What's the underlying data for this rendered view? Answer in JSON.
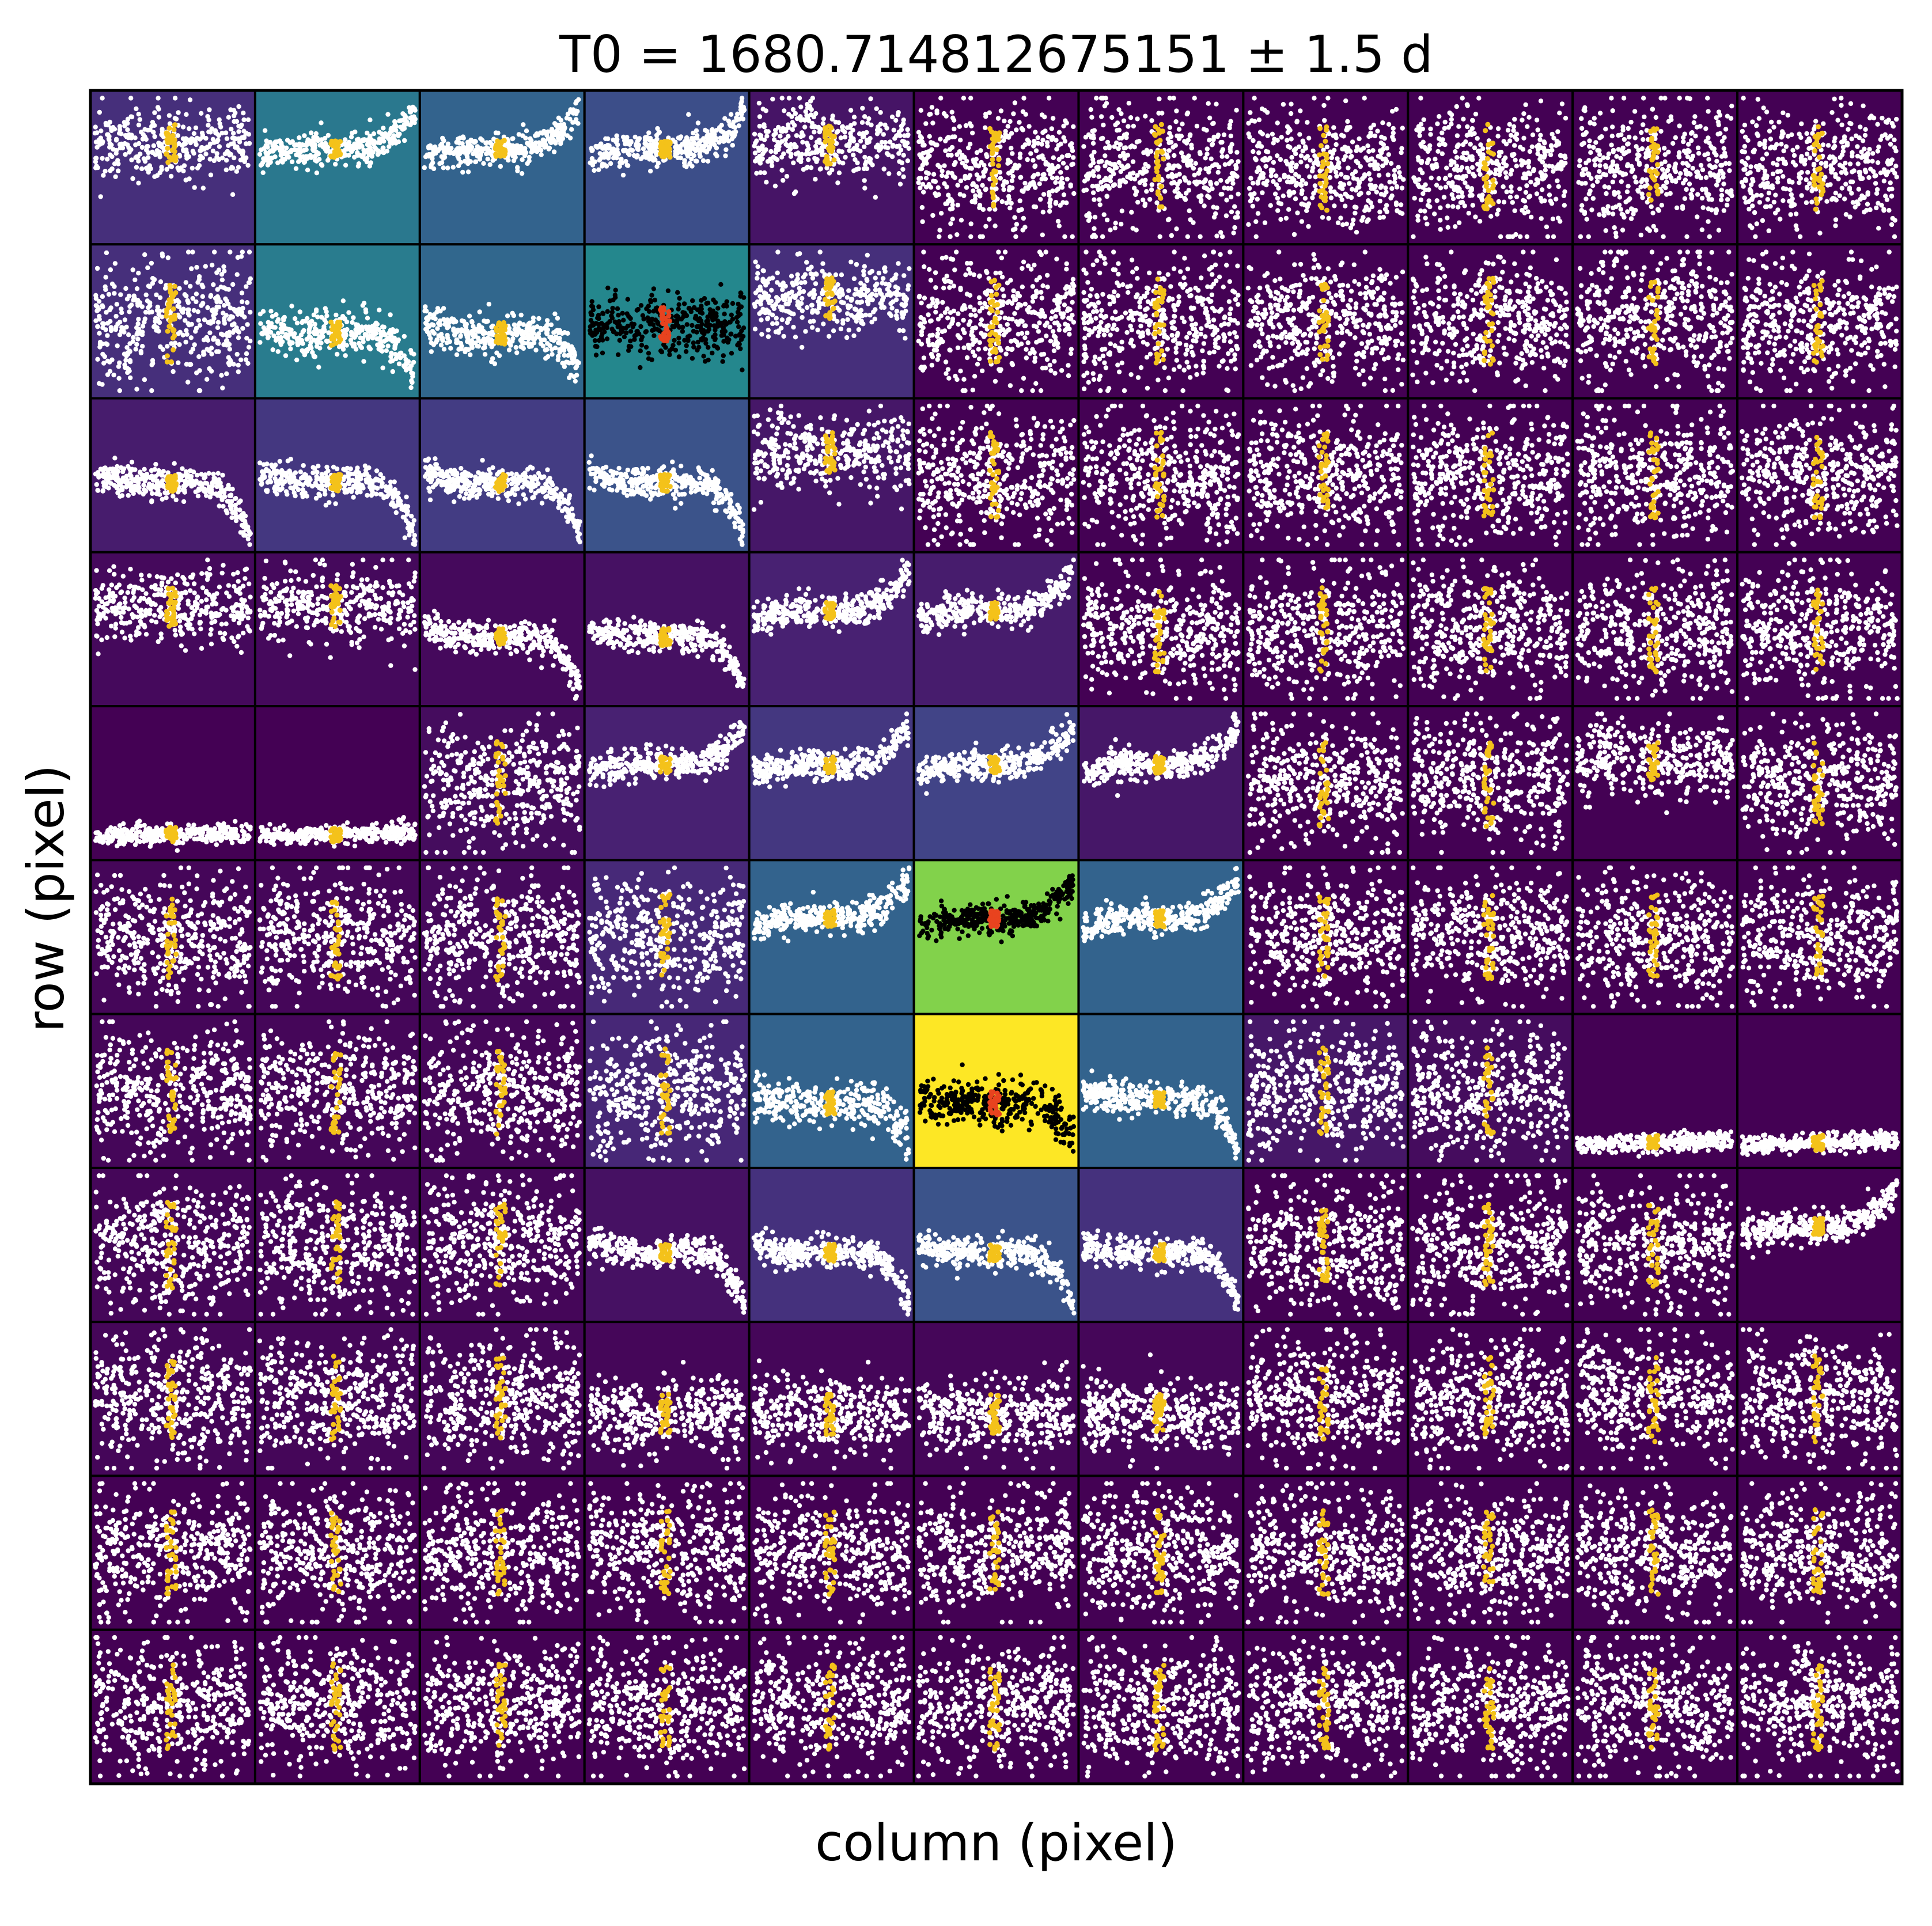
{
  "chart_data": {
    "type": "scatter",
    "layout": "pixel-grid",
    "title": "T0 = 1680.714812675151 ± 1.5 d",
    "xlabel": "column (pixel)",
    "ylabel": "row (pixel)",
    "grid": false,
    "ticks": false,
    "n_rows": 11,
    "n_cols": 11,
    "colormap": "viridis",
    "series": [
      {
        "name": "",
        "role": "flux",
        "point_color": "#ffffff"
      },
      {
        "name": "",
        "role": "in-transit",
        "point_color": "#f4c21a"
      },
      {
        "name": "",
        "role": "aperture-flux",
        "point_color": "#000000"
      },
      {
        "name": "",
        "role": "aperture-in-transit",
        "point_color": "#e8431f"
      }
    ],
    "cells": [
      [
        {
          "level": 0.17,
          "shape": "noisy-mid",
          "aperture": false
        },
        {
          "level": 0.5,
          "shape": "curve-up",
          "aperture": false
        },
        {
          "level": 0.4,
          "shape": "curve-up",
          "aperture": false
        },
        {
          "level": 0.3,
          "shape": "curve-up",
          "aperture": false
        },
        {
          "level": 0.07,
          "shape": "noisy-mid",
          "aperture": false
        },
        {
          "level": 0.0,
          "shape": "noise",
          "aperture": false
        },
        {
          "level": 0.0,
          "shape": "noise",
          "aperture": false
        },
        {
          "level": 0.0,
          "shape": "noise",
          "aperture": false
        },
        {
          "level": 0.0,
          "shape": "noise",
          "aperture": false
        },
        {
          "level": 0.0,
          "shape": "noise",
          "aperture": false
        },
        {
          "level": 0.0,
          "shape": "noise",
          "aperture": false
        }
      ],
      [
        {
          "level": 0.17,
          "shape": "noise",
          "aperture": false
        },
        {
          "level": 0.52,
          "shape": "low-curve",
          "aperture": false
        },
        {
          "level": 0.42,
          "shape": "low-curve",
          "aperture": false
        },
        {
          "level": 0.58,
          "shape": "flat-mid",
          "aperture": true
        },
        {
          "level": 0.17,
          "shape": "noisy-mid",
          "aperture": false
        },
        {
          "level": 0.0,
          "shape": "noise",
          "aperture": false
        },
        {
          "level": 0.0,
          "shape": "noise",
          "aperture": false
        },
        {
          "level": 0.0,
          "shape": "noise",
          "aperture": false
        },
        {
          "level": 0.0,
          "shape": "noise",
          "aperture": false
        },
        {
          "level": 0.0,
          "shape": "noise",
          "aperture": false
        },
        {
          "level": 0.0,
          "shape": "noise",
          "aperture": false
        }
      ],
      [
        {
          "level": 0.1,
          "shape": "curve-down",
          "aperture": false
        },
        {
          "level": 0.2,
          "shape": "curve-down",
          "aperture": false
        },
        {
          "level": 0.22,
          "shape": "curve-down",
          "aperture": false
        },
        {
          "level": 0.32,
          "shape": "curve-down",
          "aperture": false
        },
        {
          "level": 0.08,
          "shape": "noisy-mid",
          "aperture": false
        },
        {
          "level": 0.0,
          "shape": "noise",
          "aperture": false
        },
        {
          "level": 0.0,
          "shape": "noise",
          "aperture": false
        },
        {
          "level": 0.0,
          "shape": "noise",
          "aperture": false
        },
        {
          "level": 0.0,
          "shape": "noise",
          "aperture": false
        },
        {
          "level": 0.0,
          "shape": "noise",
          "aperture": false
        },
        {
          "level": 0.0,
          "shape": "noise",
          "aperture": false
        }
      ],
      [
        {
          "level": 0.03,
          "shape": "noisy-mid",
          "aperture": false
        },
        {
          "level": 0.03,
          "shape": "noisy-mid",
          "aperture": false
        },
        {
          "level": 0.03,
          "shape": "curve-down",
          "aperture": false
        },
        {
          "level": 0.06,
          "shape": "curve-down",
          "aperture": false
        },
        {
          "level": 0.12,
          "shape": "curve-up",
          "aperture": false
        },
        {
          "level": 0.1,
          "shape": "curve-up",
          "aperture": false
        },
        {
          "level": 0.0,
          "shape": "noise",
          "aperture": false
        },
        {
          "level": 0.0,
          "shape": "noise",
          "aperture": false
        },
        {
          "level": 0.0,
          "shape": "noise",
          "aperture": false
        },
        {
          "level": 0.0,
          "shape": "noise",
          "aperture": false
        },
        {
          "level": 0.0,
          "shape": "noise",
          "aperture": false
        }
      ],
      [
        {
          "level": 0.0,
          "shape": "bottom-flat",
          "aperture": false
        },
        {
          "level": 0.0,
          "shape": "bottom-flat",
          "aperture": false
        },
        {
          "level": 0.04,
          "shape": "noise",
          "aperture": false
        },
        {
          "level": 0.12,
          "shape": "curve-up",
          "aperture": false
        },
        {
          "level": 0.2,
          "shape": "curve-up",
          "aperture": false
        },
        {
          "level": 0.25,
          "shape": "curve-up",
          "aperture": false
        },
        {
          "level": 0.08,
          "shape": "curve-up",
          "aperture": false
        },
        {
          "level": 0.0,
          "shape": "noise",
          "aperture": false
        },
        {
          "level": 0.0,
          "shape": "noise",
          "aperture": false
        },
        {
          "level": 0.0,
          "shape": "noisy-mid",
          "aperture": false
        },
        {
          "level": 0.0,
          "shape": "noise",
          "aperture": false
        }
      ],
      [
        {
          "level": 0.02,
          "shape": "noise",
          "aperture": false
        },
        {
          "level": 0.02,
          "shape": "noise",
          "aperture": false
        },
        {
          "level": 0.03,
          "shape": "noise",
          "aperture": false
        },
        {
          "level": 0.15,
          "shape": "noise",
          "aperture": false
        },
        {
          "level": 0.4,
          "shape": "curve-up",
          "aperture": false
        },
        {
          "level": 0.86,
          "shape": "curve-up",
          "aperture": true
        },
        {
          "level": 0.4,
          "shape": "curve-up",
          "aperture": false
        },
        {
          "level": 0.0,
          "shape": "noise",
          "aperture": false
        },
        {
          "level": 0.0,
          "shape": "noise",
          "aperture": false
        },
        {
          "level": 0.0,
          "shape": "noise",
          "aperture": false
        },
        {
          "level": 0.0,
          "shape": "noise",
          "aperture": false
        }
      ],
      [
        {
          "level": 0.02,
          "shape": "noise",
          "aperture": false
        },
        {
          "level": 0.02,
          "shape": "noise",
          "aperture": false
        },
        {
          "level": 0.02,
          "shape": "noise",
          "aperture": false
        },
        {
          "level": 0.14,
          "shape": "noise",
          "aperture": false
        },
        {
          "level": 0.4,
          "shape": "low-curve",
          "aperture": false
        },
        {
          "level": 1.0,
          "shape": "low-curve",
          "aperture": true
        },
        {
          "level": 0.4,
          "shape": "curve-down",
          "aperture": false
        },
        {
          "level": 0.08,
          "shape": "noise",
          "aperture": false
        },
        {
          "level": 0.04,
          "shape": "noise",
          "aperture": false
        },
        {
          "level": 0.0,
          "shape": "bottom-flat",
          "aperture": false
        },
        {
          "level": 0.0,
          "shape": "bottom-flat",
          "aperture": false
        }
      ],
      [
        {
          "level": 0.02,
          "shape": "noise",
          "aperture": false
        },
        {
          "level": 0.02,
          "shape": "noise",
          "aperture": false
        },
        {
          "level": 0.02,
          "shape": "noise",
          "aperture": false
        },
        {
          "level": 0.06,
          "shape": "curve-down",
          "aperture": false
        },
        {
          "level": 0.18,
          "shape": "curve-down",
          "aperture": false
        },
        {
          "level": 0.32,
          "shape": "curve-down",
          "aperture": false
        },
        {
          "level": 0.18,
          "shape": "curve-down",
          "aperture": false
        },
        {
          "level": 0.0,
          "shape": "noise",
          "aperture": false
        },
        {
          "level": 0.0,
          "shape": "noise",
          "aperture": false
        },
        {
          "level": 0.0,
          "shape": "noise",
          "aperture": false
        },
        {
          "level": 0.0,
          "shape": "curve-up",
          "aperture": false
        }
      ],
      [
        {
          "level": 0.02,
          "shape": "noise",
          "aperture": false
        },
        {
          "level": 0.02,
          "shape": "noise",
          "aperture": false
        },
        {
          "level": 0.02,
          "shape": "noise",
          "aperture": false
        },
        {
          "level": 0.02,
          "shape": "noisy-low",
          "aperture": false
        },
        {
          "level": 0.02,
          "shape": "noisy-low",
          "aperture": false
        },
        {
          "level": 0.02,
          "shape": "noisy-low",
          "aperture": false
        },
        {
          "level": 0.02,
          "shape": "noisy-low",
          "aperture": false
        },
        {
          "level": 0.0,
          "shape": "noise",
          "aperture": false
        },
        {
          "level": 0.0,
          "shape": "noise",
          "aperture": false
        },
        {
          "level": 0.0,
          "shape": "noise",
          "aperture": false
        },
        {
          "level": 0.0,
          "shape": "noise",
          "aperture": false
        }
      ],
      [
        {
          "level": 0.0,
          "shape": "noise",
          "aperture": false
        },
        {
          "level": 0.0,
          "shape": "noise",
          "aperture": false
        },
        {
          "level": 0.0,
          "shape": "noise",
          "aperture": false
        },
        {
          "level": 0.0,
          "shape": "noise",
          "aperture": false
        },
        {
          "level": 0.0,
          "shape": "noise",
          "aperture": false
        },
        {
          "level": 0.0,
          "shape": "noise",
          "aperture": false
        },
        {
          "level": 0.0,
          "shape": "noise",
          "aperture": false
        },
        {
          "level": 0.0,
          "shape": "noise",
          "aperture": false
        },
        {
          "level": 0.0,
          "shape": "noise",
          "aperture": false
        },
        {
          "level": 0.0,
          "shape": "noise",
          "aperture": false
        },
        {
          "level": 0.0,
          "shape": "noise",
          "aperture": false
        }
      ],
      [
        {
          "level": 0.0,
          "shape": "noise",
          "aperture": false
        },
        {
          "level": 0.0,
          "shape": "noise",
          "aperture": false
        },
        {
          "level": 0.0,
          "shape": "noise",
          "aperture": false
        },
        {
          "level": 0.0,
          "shape": "noise",
          "aperture": false
        },
        {
          "level": 0.0,
          "shape": "noise",
          "aperture": false
        },
        {
          "level": 0.0,
          "shape": "noise",
          "aperture": false
        },
        {
          "level": 0.0,
          "shape": "noise",
          "aperture": false
        },
        {
          "level": 0.0,
          "shape": "noise",
          "aperture": false
        },
        {
          "level": 0.0,
          "shape": "noise",
          "aperture": false
        },
        {
          "level": 0.0,
          "shape": "noise",
          "aperture": false
        },
        {
          "level": 0.0,
          "shape": "noise",
          "aperture": false
        }
      ]
    ]
  }
}
